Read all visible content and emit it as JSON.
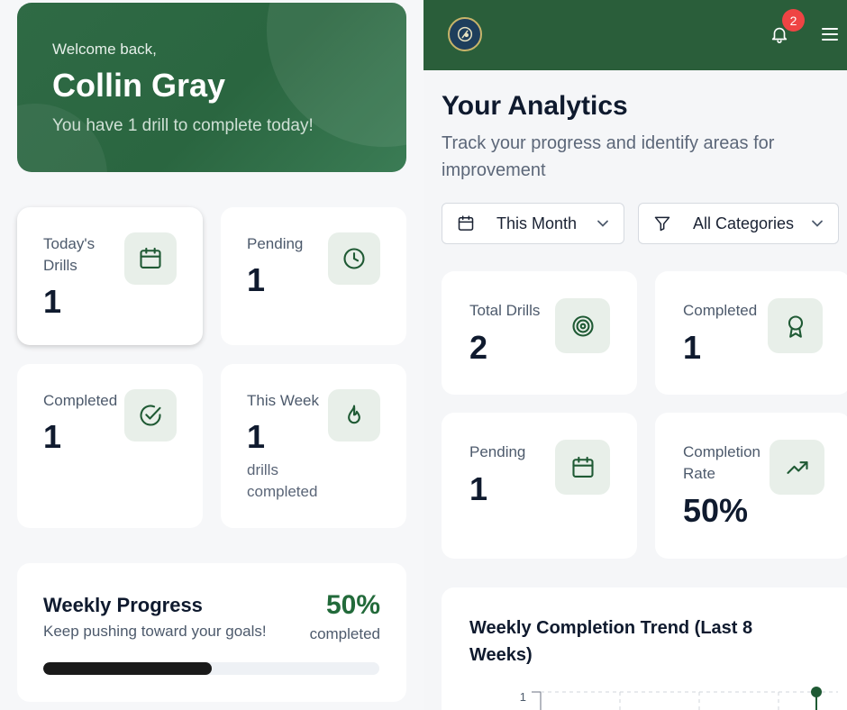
{
  "hero": {
    "welcome": "Welcome back,",
    "name": "Collin Gray",
    "subtitle": "You have 1 drill to complete today!"
  },
  "stats": {
    "today": {
      "label": "Today's Drills",
      "value": "1"
    },
    "pending": {
      "label": "Pending",
      "value": "1"
    },
    "completed": {
      "label": "Completed",
      "value": "1"
    },
    "this_week": {
      "label": "This Week",
      "value": "1",
      "note": "drills completed"
    }
  },
  "weekly_progress": {
    "title": "Weekly Progress",
    "subtitle": "Keep pushing toward your goals!",
    "percent_label": "50%",
    "completed_label": "completed",
    "progress": 0.5
  },
  "topbar": {
    "notification_count": "2"
  },
  "analytics": {
    "title": "Your Analytics",
    "subtitle": "Track your progress and identify areas for improvement",
    "filters": {
      "period": "This Month",
      "category": "All Categories"
    },
    "cards": {
      "total": {
        "label": "Total Drills",
        "value": "2"
      },
      "completed": {
        "label": "Completed",
        "value": "1"
      },
      "pending": {
        "label": "Pending",
        "value": "1"
      },
      "rate": {
        "label": "Completion Rate",
        "value": "50%"
      }
    },
    "trend": {
      "title": "Weekly Completion Trend (Last 8 Weeks)",
      "y_tick": "1"
    }
  },
  "colors": {
    "brand_green": "#2a5e3a",
    "accent_green": "#226a3a",
    "icon_bg": "#e8efe9",
    "badge_red": "#ef4444"
  },
  "icons": [
    "calendar-icon",
    "clock-icon",
    "check-circle-icon",
    "flame-icon",
    "bell-icon",
    "menu-icon",
    "filter-icon",
    "chevron-down-icon",
    "target-icon",
    "award-icon",
    "trending-up-icon"
  ]
}
